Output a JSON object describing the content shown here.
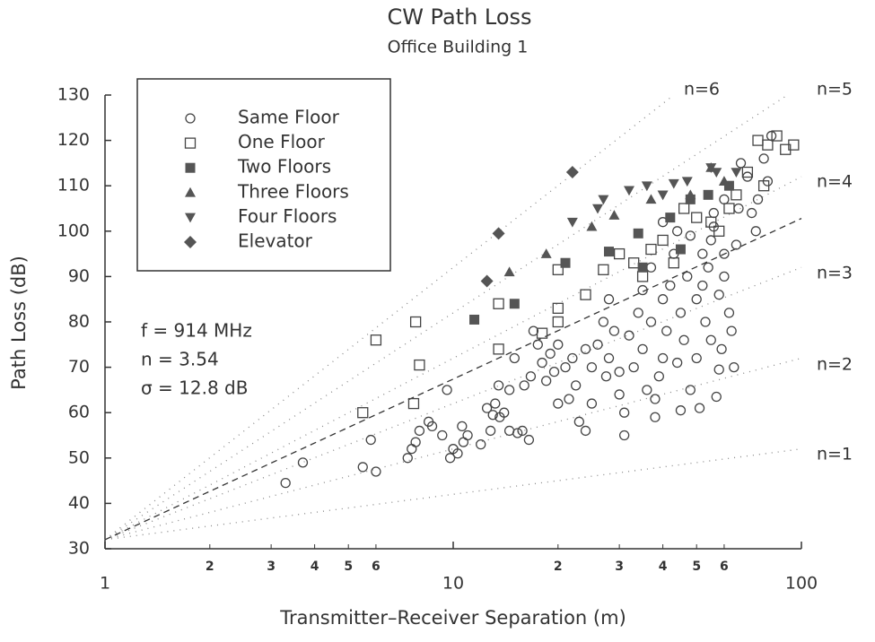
{
  "chart_data": {
    "type": "scatter",
    "title": "CW Path Loss",
    "subtitle": "Office Building 1",
    "x_label": "Transmitter–Receiver Separation (m)",
    "y_label": "Path Loss (dB)",
    "log_x": true,
    "xlim": [
      1,
      100
    ],
    "ylim": [
      30,
      130
    ],
    "xticks": [
      1,
      10,
      100
    ],
    "xminor_ticks": [
      2,
      3,
      4,
      5,
      6,
      {
        "value": 20,
        "label": "2"
      },
      {
        "value": 30,
        "label": "3"
      },
      {
        "value": 40,
        "label": "4"
      },
      {
        "value": 50,
        "label": "5"
      },
      {
        "value": 60,
        "label": "6"
      }
    ],
    "yticks": [
      30,
      40,
      50,
      60,
      70,
      80,
      90,
      100,
      110,
      120,
      130
    ],
    "annotations": [
      "f = 914 MHz",
      "n = 3.54",
      "σ = 12.8 dB"
    ],
    "reference_intercept": 32,
    "reference_lines": [
      {
        "label": "n=1",
        "n": 1
      },
      {
        "label": "n=2",
        "n": 2
      },
      {
        "label": "n=3",
        "n": 3
      },
      {
        "label": "n=4",
        "n": 4
      },
      {
        "label": "n=5",
        "n": 5
      },
      {
        "label": "n=6",
        "n": 6
      }
    ],
    "fit_n": 3.54,
    "series": [
      {
        "name": "Same Floor",
        "marker": "circle-open",
        "color": "#444",
        "x": [
          3.3,
          3.7,
          5.5,
          5.8,
          6,
          7.4,
          7.8,
          7.6,
          8,
          8.5,
          8.7,
          9.3,
          9.6,
          9.8,
          10,
          10.3,
          10.6,
          10.7,
          11,
          12,
          12.5,
          12.8,
          13,
          13.2,
          13.5,
          13.6,
          14,
          14.5,
          14.5,
          15,
          15.3,
          15.8,
          16,
          16.5,
          16.7,
          17,
          17.5,
          18,
          18.5,
          19,
          19.5,
          20,
          20,
          21,
          21.5,
          22,
          22.5,
          23,
          24,
          24,
          25,
          25,
          26,
          27,
          27.5,
          28,
          28,
          29,
          30,
          30,
          31,
          31,
          32,
          33,
          34,
          35,
          35,
          36,
          37,
          37,
          38,
          38,
          39,
          40,
          40,
          41,
          42,
          43,
          44,
          45,
          45,
          46,
          47,
          48,
          48,
          50,
          50,
          51,
          52,
          52,
          53,
          54,
          55,
          55,
          56,
          57,
          58,
          58,
          59,
          60,
          60,
          62,
          63,
          64,
          65,
          66,
          67,
          70,
          72,
          74,
          75,
          78,
          80,
          82,
          60,
          56,
          44,
          40
        ],
        "values": [
          44.5,
          49,
          48,
          54,
          47,
          50,
          53.5,
          52,
          56,
          58,
          57,
          55,
          65,
          50,
          52,
          51,
          57,
          53.5,
          55,
          53,
          61,
          56,
          59.5,
          62,
          66,
          59,
          60,
          65,
          56,
          72,
          55.5,
          56,
          66,
          54,
          68,
          78,
          75,
          71,
          67,
          73,
          69,
          62,
          75,
          70,
          63,
          72,
          66,
          58,
          74,
          56,
          62,
          70,
          75,
          80,
          68,
          72,
          85,
          78,
          64,
          69,
          60,
          55,
          77,
          70,
          82,
          74,
          87,
          65,
          80,
          92,
          63,
          59,
          68,
          72,
          85,
          78,
          88,
          95,
          71,
          60.5,
          82,
          76,
          90,
          65,
          99,
          85,
          72,
          61,
          88,
          95,
          80,
          92,
          76,
          98,
          101,
          63.5,
          86,
          69.5,
          74,
          90,
          95,
          82,
          78,
          70,
          97,
          105,
          115,
          112,
          104,
          100,
          107,
          116,
          111,
          121,
          107,
          104,
          100,
          102
        ]
      },
      {
        "name": "One Floor",
        "marker": "square-open",
        "color": "#444",
        "x": [
          5.5,
          6,
          8,
          7.7,
          7.8,
          13.5,
          13.5,
          18,
          20,
          20,
          20,
          24,
          27,
          30,
          33,
          35,
          37,
          40,
          43,
          46,
          50,
          55,
          58,
          62,
          65,
          70,
          75,
          80,
          85,
          90,
          95,
          78
        ],
        "values": [
          60,
          76,
          70.5,
          62,
          80,
          74,
          84,
          77.5,
          83,
          91.5,
          80,
          86,
          91.5,
          95,
          93,
          90,
          96,
          98,
          93,
          105,
          103,
          102,
          100,
          105,
          108,
          113,
          120,
          119,
          121,
          118,
          119,
          110
        ]
      },
      {
        "name": "Two Floors",
        "marker": "square-filled",
        "color": "#555",
        "x": [
          11.5,
          15,
          21,
          28,
          34,
          42,
          48,
          54,
          62,
          45,
          35
        ],
        "values": [
          80.5,
          84,
          93,
          95.5,
          99.5,
          103,
          107,
          108,
          110,
          96,
          92
        ]
      },
      {
        "name": "Three Floors",
        "marker": "triangle-up",
        "color": "#555",
        "x": [
          14.5,
          18.5,
          25,
          29,
          37,
          48,
          55,
          60
        ],
        "values": [
          91,
          95,
          101,
          103.5,
          107,
          108,
          114,
          111
        ]
      },
      {
        "name": "Four Floors",
        "marker": "triangle-down",
        "color": "#555",
        "x": [
          22,
          27,
          32,
          36,
          43,
          47,
          55,
          57,
          65,
          26,
          40
        ],
        "values": [
          102,
          107,
          109,
          110,
          110.5,
          111,
          114,
          113,
          113,
          105,
          108
        ]
      },
      {
        "name": "Elevator",
        "marker": "diamond",
        "color": "#555",
        "x": [
          13.5,
          12.5,
          22
        ],
        "values": [
          99.5,
          89,
          113
        ]
      }
    ]
  }
}
